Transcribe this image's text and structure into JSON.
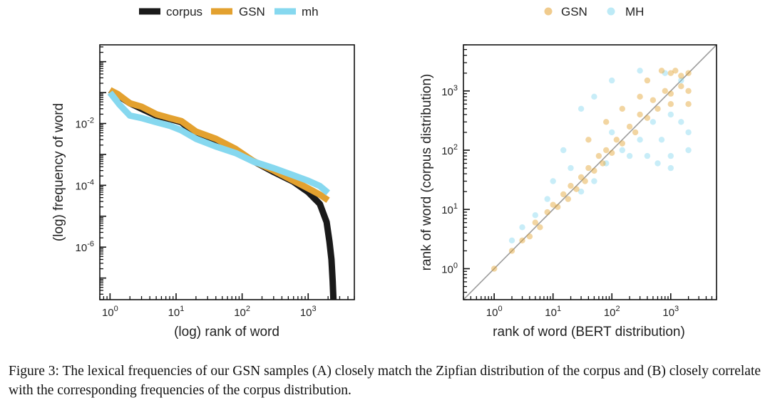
{
  "figure": {
    "caption": "Figure 3: The lexical frequencies of our GSN samples (A) closely match the Zipfian distribution of the corpus and (B) closely correlate with the corresponding frequencies of the corpus distribution."
  },
  "chart_data": [
    {
      "type": "line",
      "panel": "A",
      "xlabel": "(log) rank of word",
      "ylabel": "(log) frequency of word",
      "xscale": "log",
      "yscale": "log",
      "xlim": [
        0.7,
        5000
      ],
      "ylim": [
        2e-08,
        3.5
      ],
      "x_ticks": [
        {
          "value": 1,
          "exp": "0"
        },
        {
          "value": 10,
          "exp": "1"
        },
        {
          "value": 100,
          "exp": "2"
        },
        {
          "value": 1000,
          "exp": "3"
        }
      ],
      "y_ticks": [
        {
          "value": 0.01,
          "exp": "-2"
        },
        {
          "value": 0.0001,
          "exp": "-4"
        },
        {
          "value": 1e-06,
          "exp": "-6"
        }
      ],
      "tick_base": "10",
      "legend": {
        "position": "top",
        "entries": [
          "corpus",
          "GSN",
          "mh"
        ]
      },
      "series": [
        {
          "name": "corpus",
          "color": "#1a1a1a",
          "x": [
            1,
            2,
            3,
            5,
            8,
            12,
            20,
            40,
            80,
            150,
            300,
            600,
            1000,
            1500,
            1900,
            2100,
            2250,
            2350,
            2400,
            2420
          ],
          "y": [
            0.12,
            0.045,
            0.03,
            0.018,
            0.014,
            0.011,
            0.0045,
            0.0028,
            0.0013,
            0.0006,
            0.00027,
            0.00013,
            6e-05,
            2.5e-05,
            6.5e-06,
            1.5e-06,
            4e-07,
            8e-08,
            2.5e-08,
            1.5e-08
          ]
        },
        {
          "name": "GSN",
          "color": "#e3a12f",
          "x": [
            1,
            1.3,
            2,
            3,
            5,
            8,
            12,
            20,
            40,
            80,
            150,
            300,
            600,
            1000,
            1500,
            2000
          ],
          "y": [
            0.12,
            0.09,
            0.045,
            0.035,
            0.02,
            0.015,
            0.012,
            0.0055,
            0.0032,
            0.0015,
            0.0006,
            0.0003,
            0.00014,
            8e-05,
            5e-05,
            3.3e-05
          ]
        },
        {
          "name": "mh",
          "color": "#86d8ef",
          "x": [
            1,
            1.4,
            2,
            3,
            5,
            8,
            12,
            20,
            40,
            80,
            150,
            300,
            600,
            1000,
            1500,
            2000
          ],
          "y": [
            0.1,
            0.04,
            0.018,
            0.015,
            0.011,
            0.0085,
            0.006,
            0.0032,
            0.0018,
            0.0011,
            0.00058,
            0.00036,
            0.00021,
            0.00014,
            9.5e-05,
            5.7e-05
          ]
        }
      ]
    },
    {
      "type": "scatter",
      "panel": "B",
      "xlabel": "rank of word (BERT distribution)",
      "ylabel": "rank of word (corpus distribution)",
      "xscale": "log",
      "yscale": "log",
      "xlim": [
        0.3,
        6000
      ],
      "ylim": [
        0.3,
        6000
      ],
      "x_ticks": [
        {
          "value": 1,
          "exp": "0"
        },
        {
          "value": 10,
          "exp": "1"
        },
        {
          "value": 100,
          "exp": "2"
        },
        {
          "value": 1000,
          "exp": "3"
        }
      ],
      "y_ticks": [
        {
          "value": 1,
          "exp": "0"
        },
        {
          "value": 10,
          "exp": "1"
        },
        {
          "value": 100,
          "exp": "2"
        },
        {
          "value": 1000,
          "exp": "3"
        }
      ],
      "tick_base": "10",
      "identity_line": true,
      "legend": {
        "position": "top",
        "entries": [
          "GSN",
          "MH"
        ]
      },
      "series": [
        {
          "name": "GSN",
          "color": "#e3a12f",
          "points": [
            [
              1,
              1
            ],
            [
              2,
              2
            ],
            [
              3,
              3
            ],
            [
              4,
              3.5
            ],
            [
              5,
              6
            ],
            [
              6,
              5
            ],
            [
              8,
              9
            ],
            [
              10,
              12
            ],
            [
              12,
              11
            ],
            [
              15,
              18
            ],
            [
              18,
              15
            ],
            [
              20,
              25
            ],
            [
              25,
              22
            ],
            [
              30,
              35
            ],
            [
              35,
              30
            ],
            [
              40,
              50
            ],
            [
              50,
              45
            ],
            [
              60,
              80
            ],
            [
              70,
              60
            ],
            [
              80,
              100
            ],
            [
              100,
              90
            ],
            [
              120,
              150
            ],
            [
              150,
              130
            ],
            [
              200,
              250
            ],
            [
              250,
              200
            ],
            [
              300,
              400
            ],
            [
              400,
              350
            ],
            [
              500,
              700
            ],
            [
              600,
              500
            ],
            [
              800,
              1000
            ],
            [
              1000,
              900
            ],
            [
              1000,
              2000
            ],
            [
              1000,
              600
            ],
            [
              1500,
              1800
            ],
            [
              2000,
              2000
            ],
            [
              2000,
              1000
            ],
            [
              2000,
              600
            ],
            [
              1200,
              2200
            ],
            [
              700,
              2200
            ],
            [
              1500,
              1200
            ],
            [
              400,
              1500
            ],
            [
              300,
              800
            ],
            [
              150,
              500
            ],
            [
              80,
              300
            ],
            [
              40,
              150
            ]
          ]
        },
        {
          "name": "MH",
          "color": "#86d8ef",
          "points": [
            [
              2,
              3
            ],
            [
              3,
              5
            ],
            [
              5,
              8
            ],
            [
              8,
              15
            ],
            [
              10,
              30
            ],
            [
              20,
              50
            ],
            [
              30,
              20
            ],
            [
              50,
              30
            ],
            [
              80,
              60
            ],
            [
              100,
              200
            ],
            [
              150,
              100
            ],
            [
              200,
              80
            ],
            [
              300,
              150
            ],
            [
              400,
              80
            ],
            [
              500,
              300
            ],
            [
              700,
              150
            ],
            [
              1000,
              80
            ],
            [
              1000,
              400
            ],
            [
              1500,
              300
            ],
            [
              2000,
              200
            ],
            [
              2000,
              100
            ],
            [
              1500,
              1500
            ],
            [
              800,
              2000
            ],
            [
              300,
              2200
            ],
            [
              100,
              1500
            ],
            [
              50,
              800
            ],
            [
              30,
              500
            ],
            [
              15,
              100
            ],
            [
              1000,
              50
            ],
            [
              600,
              60
            ]
          ]
        }
      ]
    }
  ]
}
